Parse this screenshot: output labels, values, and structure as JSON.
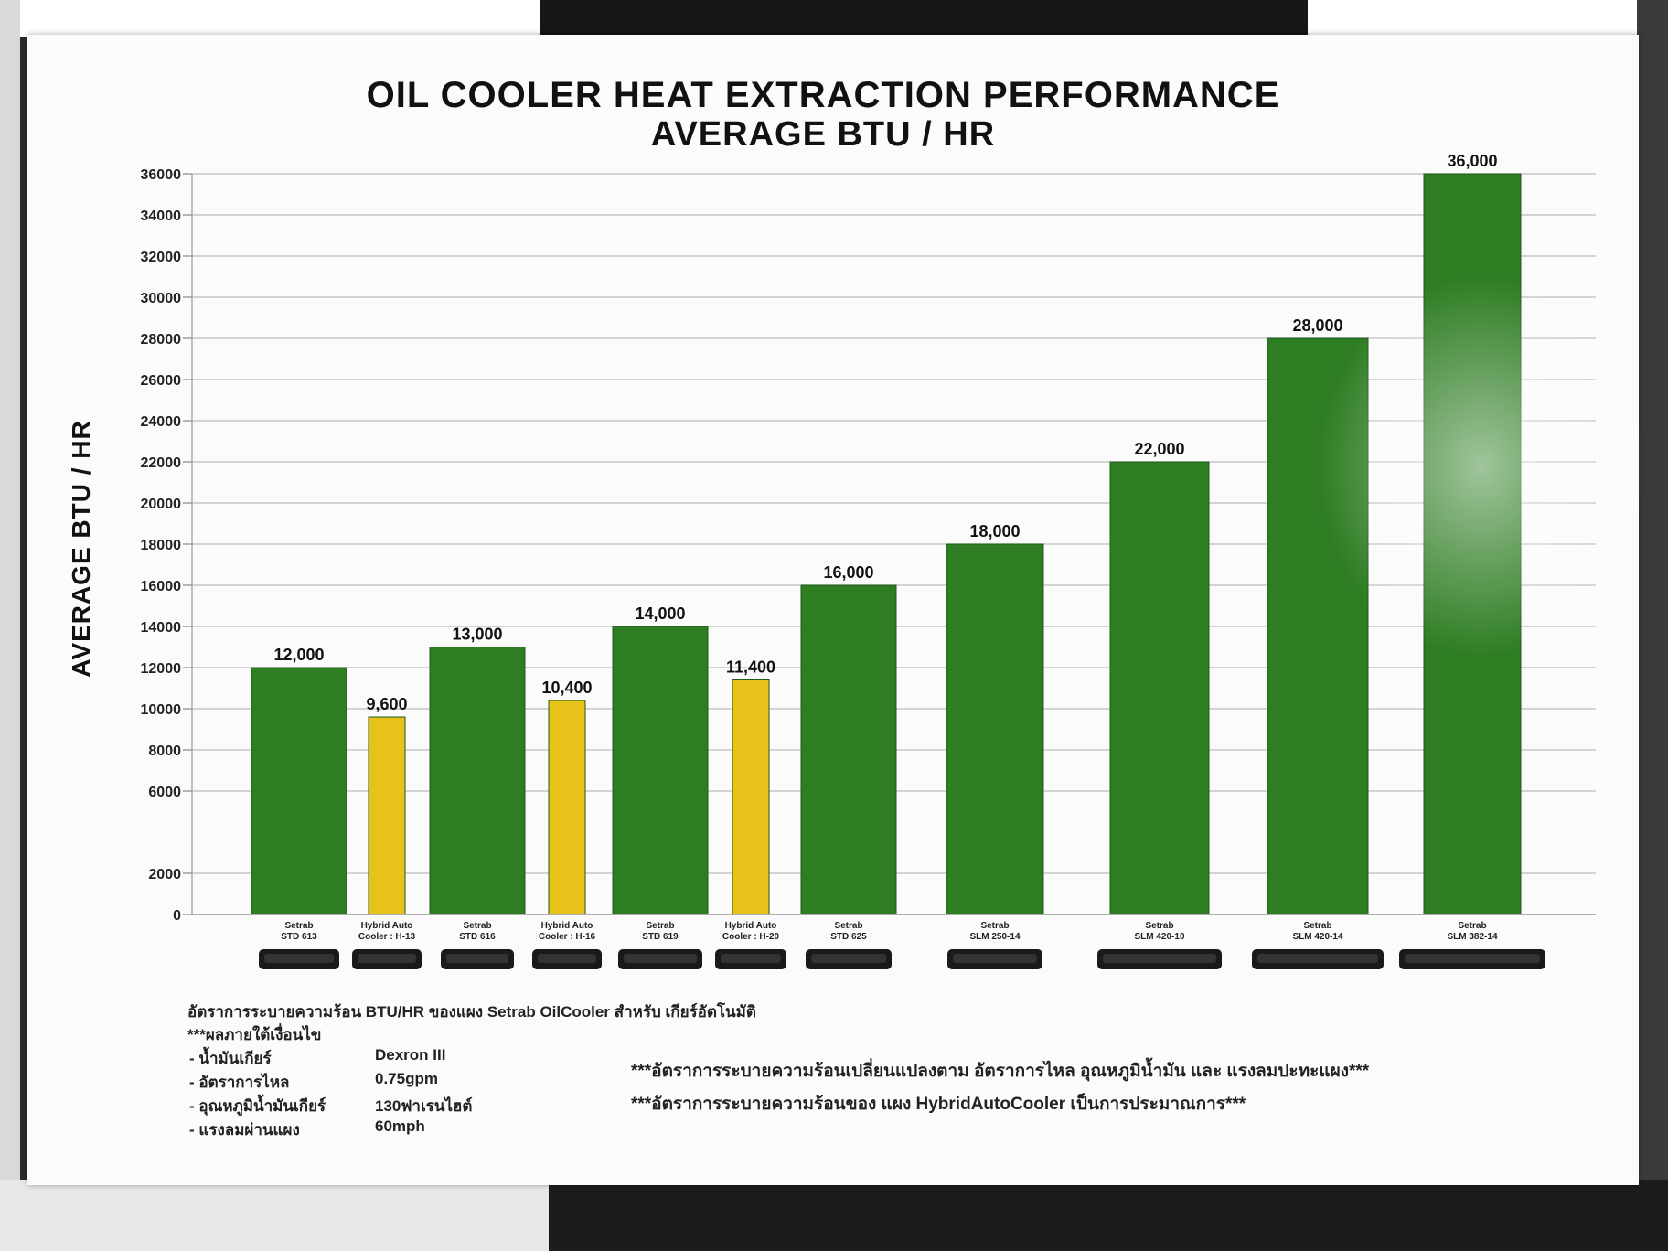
{
  "chart_data": {
    "type": "bar",
    "title": "OIL COOLER HEAT EXTRACTION PERFORMANCE",
    "subtitle": "AVERAGE BTU / HR",
    "ylabel": "AVERAGE BTU / HR",
    "xlabel": "",
    "ylim": [
      0,
      36000
    ],
    "grid": true,
    "yticks": [
      0,
      2000,
      6000,
      8000,
      10000,
      12000,
      14000,
      16000,
      18000,
      20000,
      22000,
      24000,
      26000,
      28000,
      30000,
      32000,
      34000,
      36000
    ],
    "categories": [
      [
        "Setrab",
        "STD 613"
      ],
      [
        "Hybrid Auto",
        "Cooler : H-13"
      ],
      [
        "Setrab",
        "STD 616"
      ],
      [
        "Hybrid Auto",
        "Cooler : H-16"
      ],
      [
        "Setrab",
        "STD 619"
      ],
      [
        "Hybrid Auto",
        "Cooler : H-20"
      ],
      [
        "Setrab",
        "STD 625"
      ],
      [
        "Setrab",
        "SLM 250-14"
      ],
      [
        "Setrab",
        "SLM 420-10"
      ],
      [
        "Setrab",
        "SLM 420-14"
      ],
      [
        "Setrab",
        "SLM 382-14"
      ]
    ],
    "values": [
      12000,
      9600,
      13000,
      10400,
      14000,
      11400,
      16000,
      18000,
      22000,
      28000,
      36000
    ],
    "data_labels": [
      "12,000",
      "9,600",
      "13,000",
      "10,400",
      "14,000",
      "11,400",
      "16,000",
      "18,000",
      "22,000",
      "28,000",
      "36,000"
    ],
    "colors": [
      "#2e7d23",
      "#e6c21a",
      "#2e7d23",
      "#e6c21a",
      "#2e7d23",
      "#e6c21a",
      "#2e7d23",
      "#2e7d23",
      "#2e7d23",
      "#2e7d23",
      "#2e7d23"
    ]
  },
  "notes": {
    "caption": "อัตราการระบายความร้อน BTU/HR ของแผง Setrab OilCooler สำหรับ เกียร์อัตโนมัติ",
    "conditions_heading": "***ผลภายใต้เงื่อนไข",
    "conditions": [
      {
        "label": "- น้ำมันเกียร์",
        "value": "Dexron III"
      },
      {
        "label": "- อัตราการไหล",
        "value": "0.75gpm"
      },
      {
        "label": "- อุณหภูมิน้ำมันเกียร์",
        "value": "130ฟาเรนไฮต์"
      },
      {
        "label": "- แรงลมผ่านแผง",
        "value": "60mph"
      }
    ],
    "disclaimers": [
      "***อัตราการระบายความร้อนเปลี่ยนแปลงตาม อัตราการไหล อุณหภูมิน้ำมัน และ แรงลมปะทะแผง***",
      "***อัตราการระบายความร้อนของ แผง HybridAutoCooler เป็นการประมาณการ***"
    ]
  }
}
